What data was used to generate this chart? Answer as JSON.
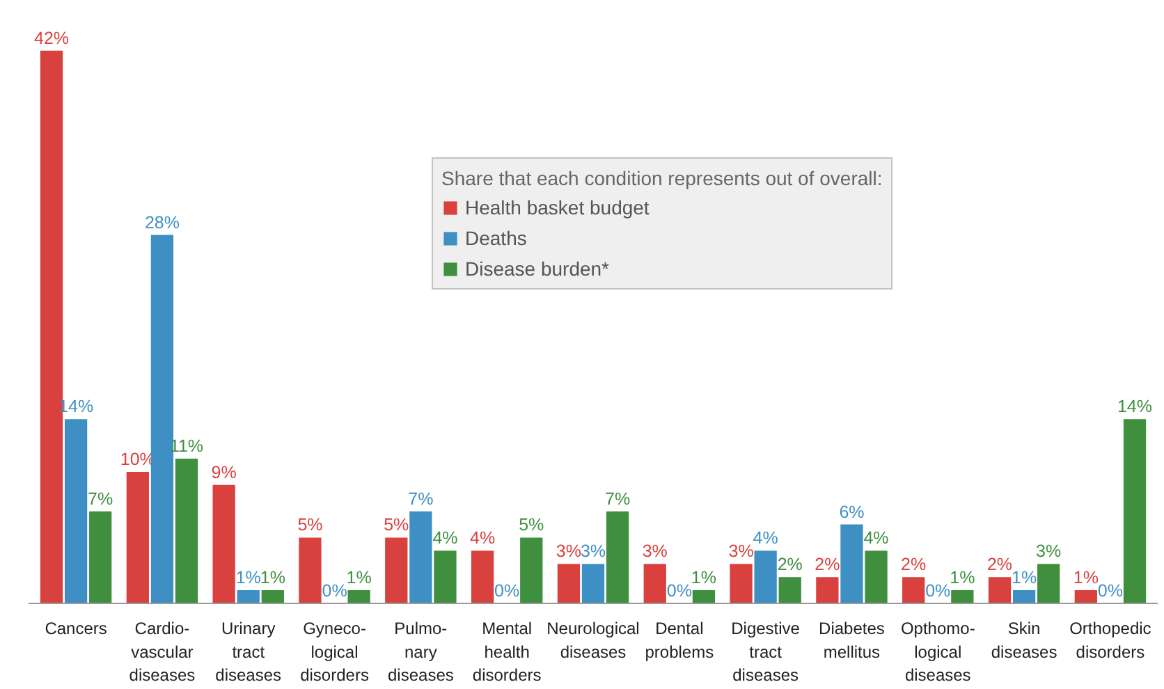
{
  "chart_data": {
    "type": "bar",
    "legend_title": "Share that each condition represents out of overall:",
    "legend": "top",
    "grid": false,
    "tick_labels": "x",
    "categories": [
      "Cancers",
      "Cardio-\nvascular\ndiseases",
      "Urinary\ntract\ndiseases",
      "Gyneco-\nlogical\ndisorders",
      "Pulmo-\nnary\ndiseases",
      "Mental\nhealth\ndisorders",
      "Neurological\ndiseases",
      "Dental\nproblems",
      "Digestive\ntract\ndiseases",
      "Diabetes\nmellitus",
      "Opthomo-\nlogical\ndiseases",
      "Skin\ndiseases",
      "Orthopedic\ndisorders"
    ],
    "series": [
      {
        "name": "Health basket budget",
        "color": "#d9413e",
        "values": [
          42,
          10,
          9,
          5,
          5,
          4,
          3,
          3,
          3,
          2,
          2,
          2,
          1
        ],
        "value_labels": [
          "42%",
          "10%",
          "9%",
          "5%",
          "5%",
          "4%",
          "3%",
          "3%",
          "3%",
          "2%",
          "2%",
          "2%",
          "1%"
        ]
      },
      {
        "name": "Deaths",
        "color": "#3e8fc4",
        "values": [
          14,
          28,
          1,
          0,
          7,
          0,
          3,
          0,
          4,
          6,
          0,
          1,
          0
        ],
        "value_labels": [
          "14%",
          "28%",
          "1%",
          "0%",
          "7%",
          "0%",
          "3%",
          "0%",
          "4%",
          "6%",
          "0%",
          "1%",
          "0%"
        ]
      },
      {
        "name": "Disease burden*",
        "color": "#3f8f3f",
        "values": [
          7,
          11,
          1,
          1,
          4,
          5,
          7,
          1,
          2,
          4,
          1,
          3,
          14
        ],
        "value_labels": [
          "7%",
          "11%",
          "1%",
          "1%",
          "4%",
          "5%",
          "7%",
          "1%",
          "2%",
          "4%",
          "1%",
          "3%",
          "14%"
        ]
      }
    ]
  }
}
